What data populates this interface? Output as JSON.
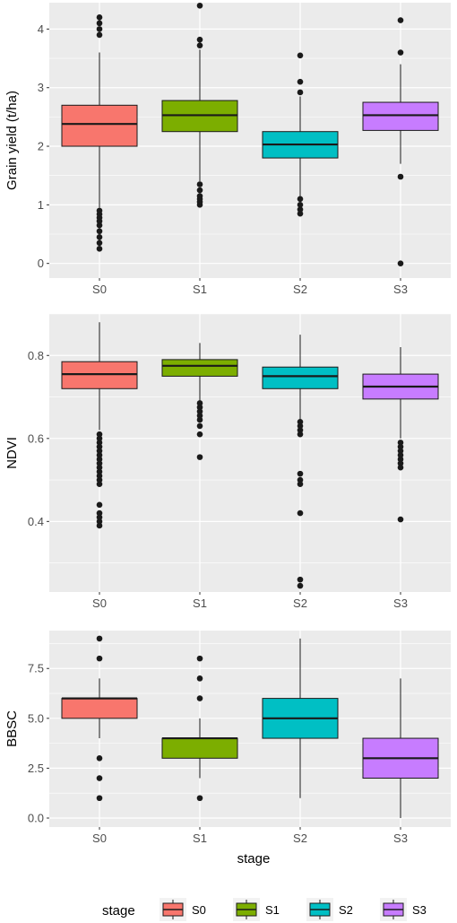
{
  "chart_data": [
    {
      "type": "boxplot",
      "ylabel": "Grain yield (t/ha)",
      "xlabel": "",
      "categories": [
        "S0",
        "S1",
        "S2",
        "S3"
      ],
      "ylim": [
        -0.25,
        4.45
      ],
      "yticks": [
        0,
        1,
        2,
        3,
        4
      ],
      "ytick_labels": [
        "0",
        "1",
        "2",
        "3",
        "4"
      ],
      "grid": true,
      "boxes": [
        {
          "q1": 2.0,
          "median": 2.38,
          "q3": 2.7,
          "whisker_low": 0.95,
          "whisker_high": 3.6,
          "outliers": [
            0.25,
            0.35,
            0.45,
            0.55,
            0.65,
            0.72,
            0.78,
            0.84,
            0.9,
            3.9,
            4.0,
            4.1,
            4.2
          ]
        },
        {
          "q1": 2.25,
          "median": 2.53,
          "q3": 2.78,
          "whisker_low": 1.4,
          "whisker_high": 3.65,
          "outliers": [
            1.0,
            1.05,
            1.1,
            1.15,
            1.25,
            1.35,
            3.72,
            3.82,
            4.4
          ]
        },
        {
          "q1": 1.8,
          "median": 2.03,
          "q3": 2.25,
          "whisker_low": 1.15,
          "whisker_high": 2.85,
          "outliers": [
            0.85,
            0.92,
            1.0,
            1.1,
            2.92,
            3.1,
            3.55
          ]
        },
        {
          "q1": 2.27,
          "median": 2.53,
          "q3": 2.75,
          "whisker_low": 1.7,
          "whisker_high": 3.4,
          "outliers": [
            0.0,
            1.48,
            3.6,
            4.15
          ]
        }
      ]
    },
    {
      "type": "boxplot",
      "ylabel": "NDVI",
      "xlabel": "",
      "categories": [
        "S0",
        "S1",
        "S2",
        "S3"
      ],
      "ylim": [
        0.23,
        0.9
      ],
      "yticks": [
        0.4,
        0.6,
        0.8
      ],
      "ytick_labels": [
        "0.4",
        "0.6",
        "0.8"
      ],
      "grid": true,
      "boxes": [
        {
          "q1": 0.72,
          "median": 0.755,
          "q3": 0.785,
          "whisker_low": 0.62,
          "whisker_high": 0.88,
          "outliers": [
            0.39,
            0.4,
            0.41,
            0.42,
            0.44,
            0.49,
            0.5,
            0.51,
            0.52,
            0.53,
            0.54,
            0.55,
            0.56,
            0.57,
            0.58,
            0.59,
            0.6,
            0.61
          ]
        },
        {
          "q1": 0.75,
          "median": 0.775,
          "q3": 0.79,
          "whisker_low": 0.69,
          "whisker_high": 0.83,
          "outliers": [
            0.555,
            0.61,
            0.63,
            0.645,
            0.655,
            0.665,
            0.675,
            0.685
          ]
        },
        {
          "q1": 0.72,
          "median": 0.75,
          "q3": 0.772,
          "whisker_low": 0.645,
          "whisker_high": 0.85,
          "outliers": [
            0.245,
            0.26,
            0.42,
            0.49,
            0.5,
            0.515,
            0.61,
            0.62,
            0.63,
            0.64
          ]
        },
        {
          "q1": 0.695,
          "median": 0.725,
          "q3": 0.755,
          "whisker_low": 0.6,
          "whisker_high": 0.82,
          "outliers": [
            0.405,
            0.53,
            0.54,
            0.55,
            0.56,
            0.57,
            0.58,
            0.59
          ]
        }
      ]
    },
    {
      "type": "boxplot",
      "ylabel": "BBSC",
      "xlabel": "stage",
      "categories": [
        "S0",
        "S1",
        "S2",
        "S3"
      ],
      "ylim": [
        -0.45,
        9.4
      ],
      "yticks": [
        0,
        2.5,
        5,
        7.5
      ],
      "ytick_labels": [
        "0.0",
        "2.5",
        "5.0",
        "7.5"
      ],
      "grid": true,
      "boxes": [
        {
          "q1": 5.0,
          "median": 6.0,
          "q3": 6.0,
          "whisker_low": 4.0,
          "whisker_high": 7.0,
          "outliers": [
            1.0,
            2.0,
            3.0,
            8.0,
            9.0
          ]
        },
        {
          "q1": 3.0,
          "median": 4.0,
          "q3": 4.0,
          "whisker_low": 2.0,
          "whisker_high": 5.0,
          "outliers": [
            1.0,
            6.0,
            7.0,
            8.0
          ]
        },
        {
          "q1": 4.0,
          "median": 5.0,
          "q3": 6.0,
          "whisker_low": 1.0,
          "whisker_high": 9.0,
          "outliers": []
        },
        {
          "q1": 2.0,
          "median": 3.0,
          "q3": 4.0,
          "whisker_low": 0.0,
          "whisker_high": 7.0,
          "outliers": []
        }
      ]
    }
  ],
  "legend": {
    "title": "stage",
    "position": "bottom",
    "items": [
      {
        "label": "S0",
        "color": "#f8766d"
      },
      {
        "label": "S1",
        "color": "#7cae00"
      },
      {
        "label": "S2",
        "color": "#00bfc4"
      },
      {
        "label": "S3",
        "color": "#c77cff"
      }
    ]
  },
  "colors": {
    "panel_background": "#ebebeb",
    "grid": "#ffffff",
    "box_outline": "#1a1a1a"
  }
}
